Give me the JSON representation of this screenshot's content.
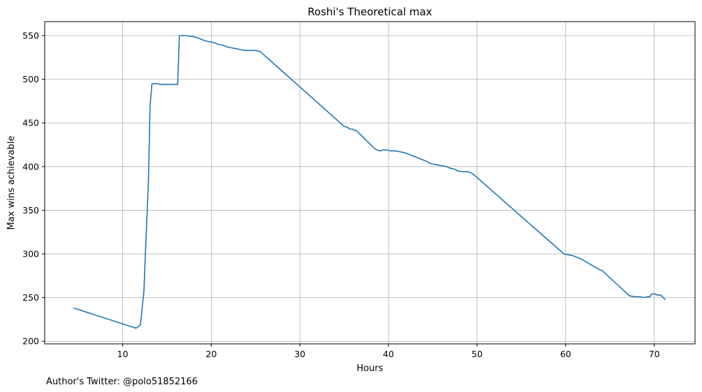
{
  "chart_data": {
    "type": "line",
    "title": "Roshi's Theoretical max",
    "xlabel": "Hours",
    "ylabel": "Max wins achievable",
    "footer": "Author's Twitter: @polo51852166",
    "xlim": [
      1.2,
      74.6
    ],
    "ylim": [
      197,
      566
    ],
    "x_ticks": [
      10,
      20,
      30,
      40,
      50,
      60,
      70
    ],
    "y_ticks": [
      200,
      250,
      300,
      350,
      400,
      450,
      500,
      550
    ],
    "grid": true,
    "legend": "none",
    "series": [
      {
        "color": "#1f77b4",
        "x": [
          4.5,
          11.5,
          11.8,
          12.0,
          12.4,
          12.6,
          12.9,
          13.1,
          13.3,
          13.6,
          13.9,
          14.2,
          15.0,
          16.0,
          16.2,
          16.4,
          17.0,
          17.9,
          18.3,
          18.8,
          19.3,
          19.8,
          20.3,
          20.8,
          21.3,
          21.8,
          22.3,
          22.8,
          23.3,
          23.8,
          24.2,
          24.6,
          25.0,
          25.4,
          25.6,
          35.0,
          35.4,
          35.6,
          35.9,
          36.1,
          36.4,
          36.7,
          37.0,
          37.5,
          38.0,
          38.5,
          39.0,
          39.4,
          39.8,
          40.3,
          40.8,
          41.3,
          41.8,
          42.3,
          42.8,
          43.3,
          43.8,
          44.3,
          44.6,
          45.0,
          45.5,
          46.0,
          46.5,
          47.0,
          47.5,
          47.8,
          48.5,
          49.0,
          49.3,
          49.6,
          59.8,
          60.3,
          60.8,
          61.3,
          61.8,
          62.3,
          62.8,
          63.3,
          63.8,
          64.1,
          67.2,
          67.8,
          68.4,
          68.8,
          69.2,
          69.5,
          69.7,
          70.1,
          70.3,
          70.7,
          70.9,
          71.2
        ],
        "y": [
          238,
          215,
          217,
          219,
          258,
          310,
          380,
          470,
          495,
          495,
          495,
          494,
          494,
          494,
          494,
          550,
          550,
          549,
          548,
          546,
          544,
          543,
          542,
          540,
          539,
          537,
          536,
          535,
          534,
          533,
          533,
          533,
          533,
          532,
          531,
          446,
          445,
          443,
          443,
          442,
          441,
          438,
          435,
          430,
          425,
          420,
          418,
          419,
          419,
          418,
          418,
          417,
          416,
          414,
          412,
          410,
          408,
          406,
          404,
          403,
          402,
          401,
          400,
          398,
          397,
          395,
          394,
          394,
          393,
          391,
          300,
          299,
          298,
          296,
          294,
          291,
          288,
          285,
          282,
          281,
          252,
          251,
          251,
          250,
          251,
          251,
          254,
          254,
          253,
          253,
          251,
          248
        ]
      }
    ]
  }
}
